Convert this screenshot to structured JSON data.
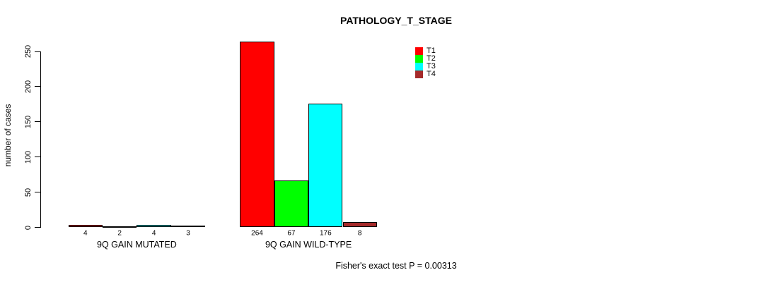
{
  "title": "PATHOLOGY_T_STAGE",
  "footer": "Fisher's exact test P = 0.00313",
  "chart_data": {
    "type": "bar",
    "title": "PATHOLOGY_T_STAGE",
    "xlabel": "",
    "ylabel": "number of cases",
    "ylim": [
      0,
      250
    ],
    "yticks": [
      0,
      50,
      100,
      150,
      200,
      250
    ],
    "grid": false,
    "legend_position": "top-right",
    "categories": [
      "9Q GAIN MUTATED",
      "9Q GAIN WILD-TYPE"
    ],
    "series": [
      {
        "name": "T1",
        "color": "#ff0000",
        "values": [
          4,
          264
        ]
      },
      {
        "name": "T2",
        "color": "#00ff00",
        "values": [
          2,
          67
        ]
      },
      {
        "name": "T3",
        "color": "#00ffff",
        "values": [
          4,
          176
        ]
      },
      {
        "name": "T4",
        "color": "#a52a2a",
        "values": [
          3,
          8
        ]
      }
    ],
    "bar_labels": [
      [
        4,
        2,
        4,
        3
      ],
      [
        264,
        67,
        176,
        8
      ]
    ],
    "annotation": "Fisher's exact test P = 0.00313"
  }
}
